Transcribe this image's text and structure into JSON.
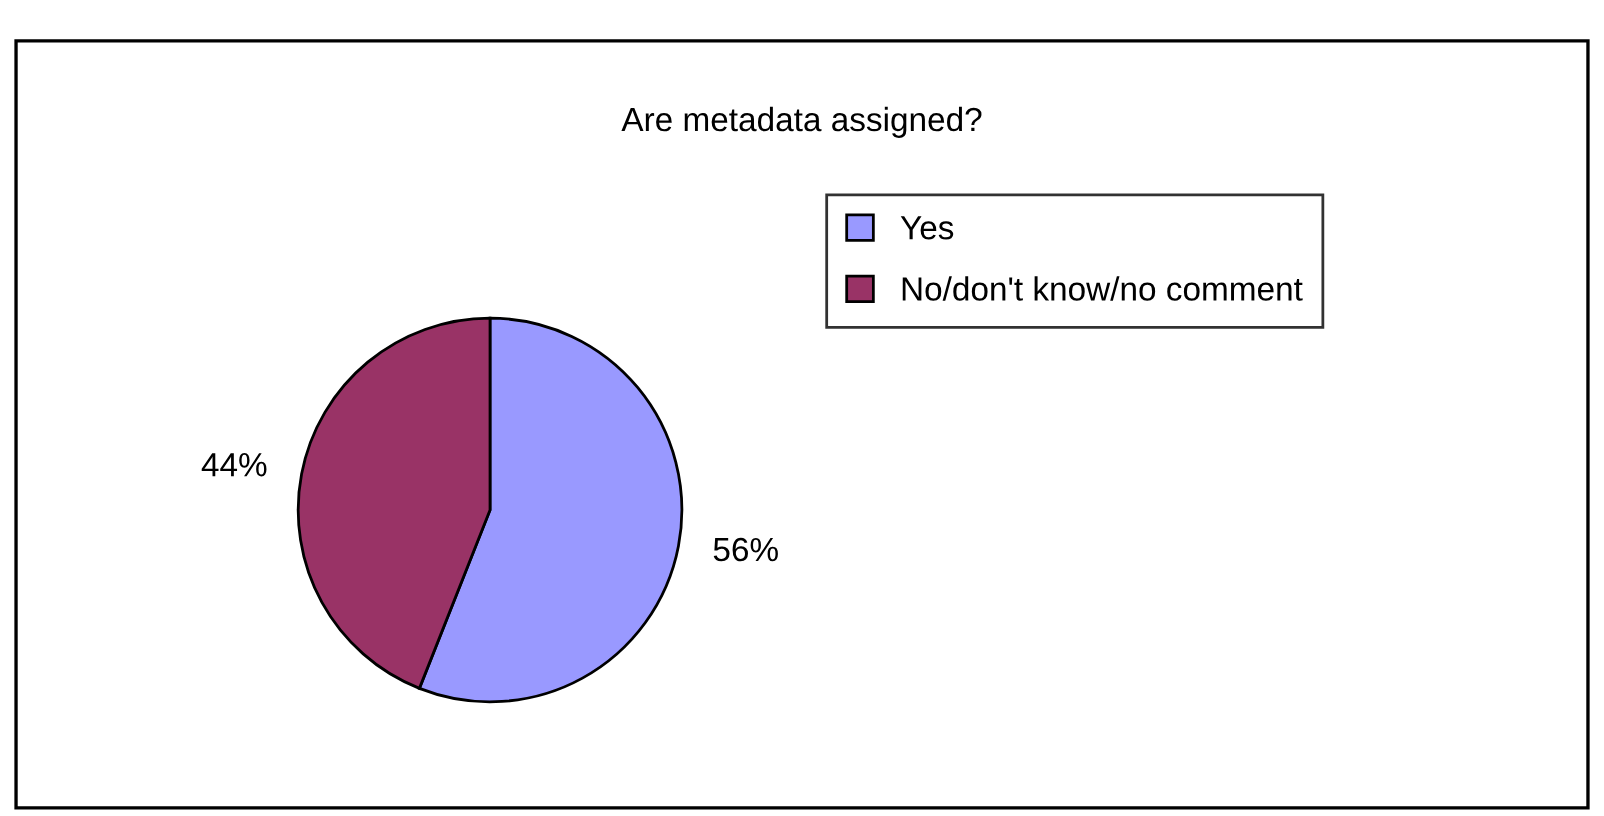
{
  "chart_data": {
    "type": "pie",
    "title": "Are metadata assigned?",
    "categories": [
      "Yes",
      "No/don't know/no comment"
    ],
    "values": [
      56,
      44
    ],
    "colors": [
      "#9999ff",
      "#993366"
    ],
    "value_labels": [
      "56%",
      "44%"
    ],
    "legend": "right"
  }
}
